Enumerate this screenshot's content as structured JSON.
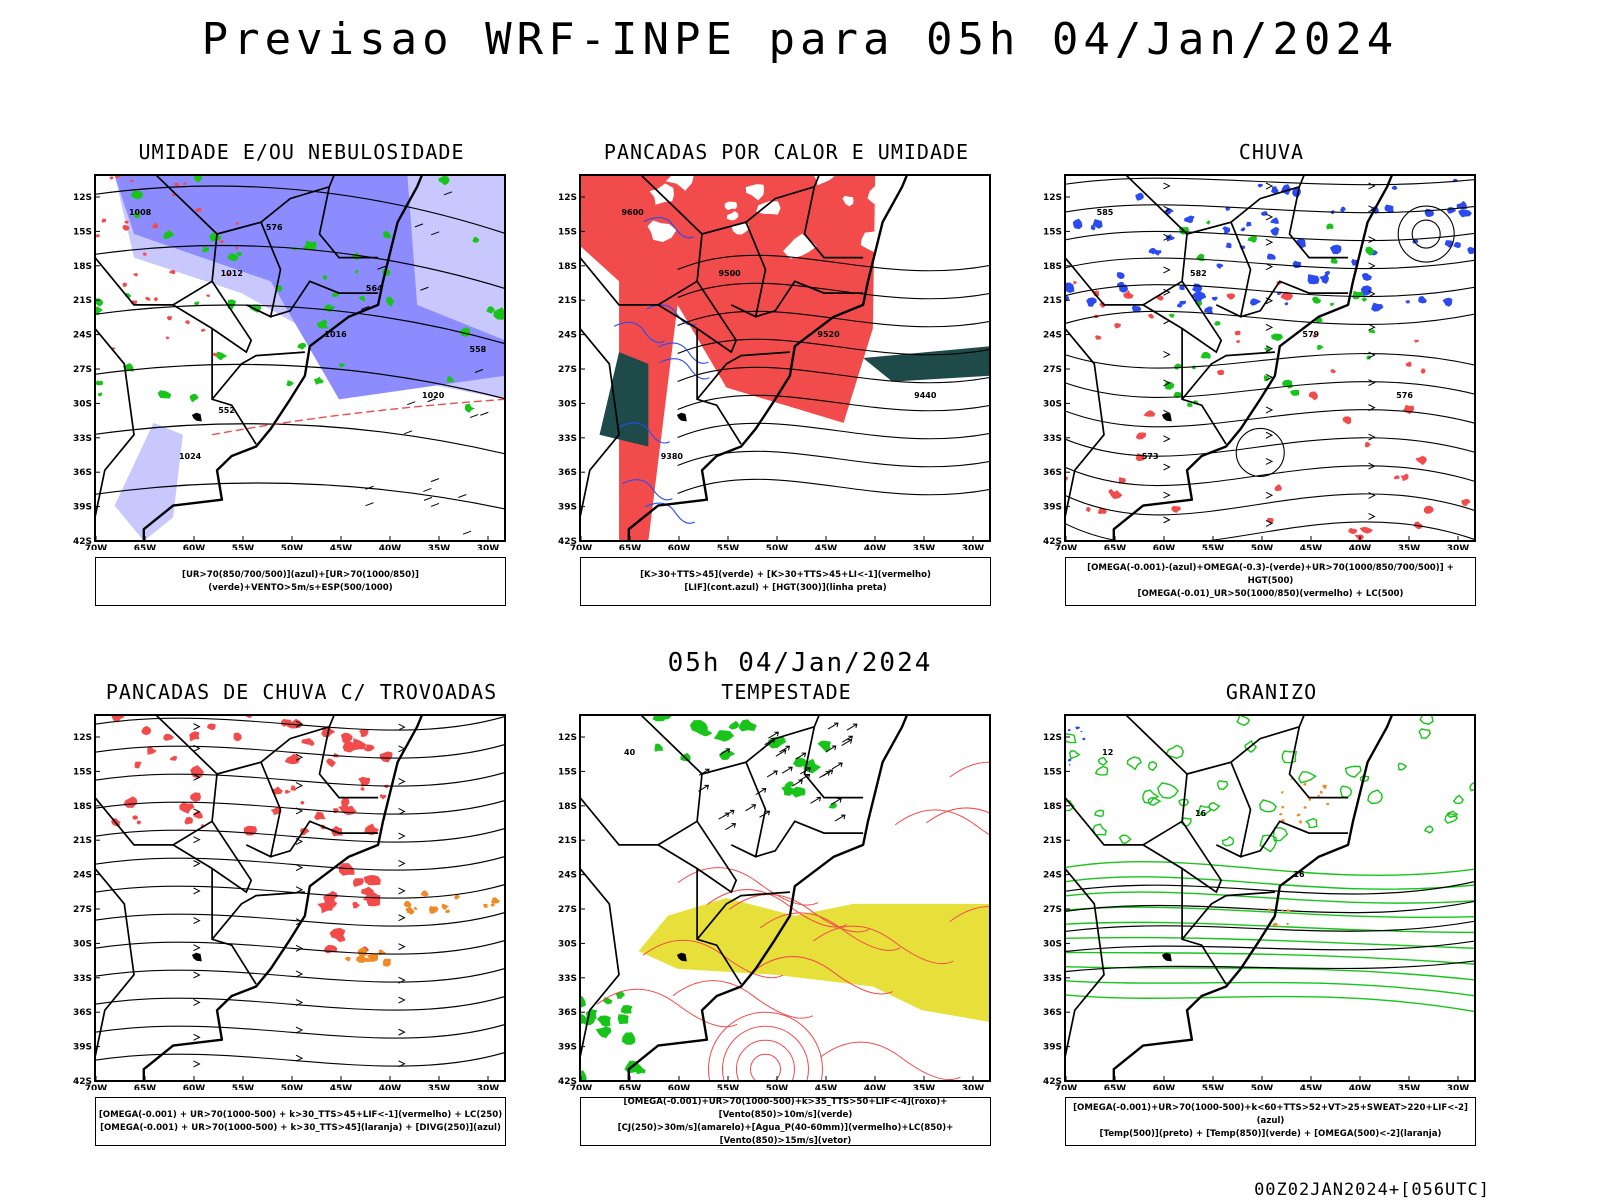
{
  "title": "Previsao WRF-INPE  para 05h 04/Jan/2024",
  "subtitle": "05h 04/Jan/2024",
  "footer": "00Z02JAN2024+[056UTC]",
  "axes": {
    "lat_labels": [
      "12S",
      "15S",
      "18S",
      "21S",
      "24S",
      "27S",
      "30S",
      "33S",
      "36S",
      "39S",
      "42S"
    ],
    "lon_labels": [
      "70W",
      "65W",
      "60W",
      "55W",
      "50W",
      "45W",
      "40W",
      "35W",
      "30W"
    ]
  },
  "colors": {
    "red": "#f24b4b",
    "blue": "#2b4bf0",
    "green": "#19c41a",
    "lavender": "#8c8cff",
    "pale_lavender": "#c8c8ff",
    "dark_teal": "#1e4a4a",
    "yellow": "#e8e03a",
    "orange": "#f08a24"
  },
  "panels": [
    {
      "id": "umidade",
      "title": "UMIDADE E/OU NEBULOSIDADE",
      "legend": [
        "[UR>70(850/700/500)](azul)+[UR>70(1000/850)](verde)+VENTO>5m/s+ESP(500/1000)"
      ],
      "contour_labels": [
        "1008",
        "1012",
        "1016",
        "1020",
        "1024",
        "576",
        "564",
        "558",
        "552"
      ]
    },
    {
      "id": "pancadas-calor",
      "title": "PANCADAS POR CALOR E UMIDADE",
      "legend": [
        "[K>30+TTS>45](verde) + [K>30+TTS>45+LI<-1](vermelho)",
        "[LIF](cont.azul) + [HGT(300)](linha preta)"
      ],
      "contour_labels": [
        "9600",
        "9500",
        "9520",
        "9440",
        "9380"
      ]
    },
    {
      "id": "chuva",
      "title": "CHUVA",
      "legend": [
        "[OMEGA(-0.001)-(azul)+OMEGA(-0.3)-(verde)+UR>70(1000/850/700/500)] + HGT(500)",
        "[OMEGA(-0.01)_UR>50(1000/850)(vermelho) + LC(500)"
      ],
      "contour_labels": [
        "585",
        "582",
        "579",
        "576",
        "573"
      ]
    },
    {
      "id": "pancadas-trovoadas",
      "title": "PANCADAS DE CHUVA C/ TROVOADAS",
      "legend": [
        "[OMEGA(-0.001) + UR>70(1000-500) + k>30_TTS>45+LIF<-1](vermelho) + LC(250)",
        "[OMEGA(-0.001) + UR>70(1000-500) + k>30_TTS>45](laranja) + [DIVG(250)](azul)"
      ],
      "contour_labels": []
    },
    {
      "id": "tempestade",
      "title": "TEMPESTADE",
      "legend": [
        "[OMEGA(-0.001)+UR>70(1000-500)+k>35_TTS>50+LIF<-4](roxo)+[Vento(850)>10m/s](verde)",
        "[CJ(250)>30m/s](amarelo)+[Agua_P(40-60mm)](vermelho)+LC(850)+[Vento(850)>15m/s](vetor)"
      ],
      "contour_labels": [
        "40"
      ]
    },
    {
      "id": "granizo",
      "title": "GRANIZO",
      "legend": [
        "[OMEGA(-0.001)+UR>70(1000-500)+k<60+TTS>52+VT>25+SWEAT>220+LIF<-2](azul)",
        "[Temp(500)](preto) + [Temp(850)](verde) + [OMEGA(500)<-2](laranja)"
      ],
      "contour_labels": [
        "12",
        "16",
        "16"
      ]
    }
  ]
}
